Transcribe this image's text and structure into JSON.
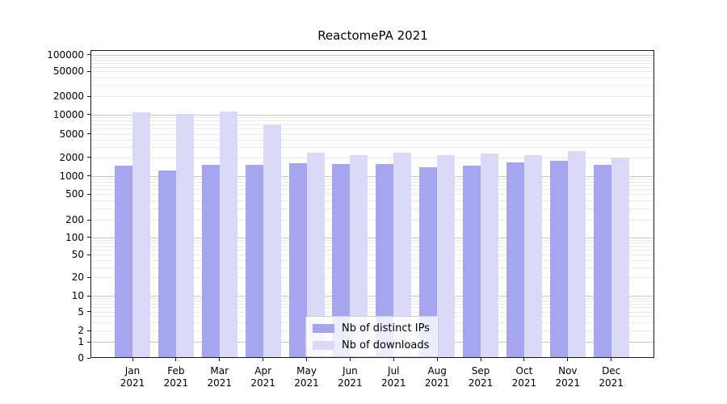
{
  "title": "ReactomePA 2021",
  "colors": {
    "ips_bar": "#a5a5f0",
    "downloads_bar": "#dadaf8",
    "axis": "#1a1a1a",
    "grid_major": "#c6c6c6",
    "grid_minor": "#e9e9e9",
    "legend_background": "rgba(255,255,255,0.8)"
  },
  "legend": {
    "items": [
      {
        "label": "Nb of distinct IPs",
        "series": "ips"
      },
      {
        "label": "Nb of downloads",
        "series": "downloads"
      }
    ]
  },
  "chart_data": {
    "type": "bar",
    "title": "ReactomePA 2021",
    "categories": [
      "Jan 2021",
      "Feb 2021",
      "Mar 2021",
      "Apr 2021",
      "May 2021",
      "Jun 2021",
      "Jul 2021",
      "Aug 2021",
      "Sep 2021",
      "Oct 2021",
      "Nov 2021",
      "Dec 2021"
    ],
    "series": [
      {
        "name": "Nb of distinct IPs",
        "color": "#a5a5f0",
        "values": [
          1400,
          1170,
          1470,
          1460,
          1540,
          1500,
          1500,
          1330,
          1430,
          1580,
          1720,
          1440
        ]
      },
      {
        "name": "Nb of downloads",
        "color": "#dadaf8",
        "values": [
          10400,
          10000,
          10800,
          6700,
          2330,
          2070,
          2290,
          2110,
          2220,
          2110,
          2460,
          1900
        ]
      }
    ],
    "xlabel": "",
    "ylabel": "",
    "yscale": "symlog",
    "ylim": [
      0,
      100000
    ],
    "yticks": [
      0,
      1,
      2,
      5,
      10,
      20,
      50,
      100,
      200,
      500,
      1000,
      2000,
      5000,
      10000,
      20000,
      50000,
      100000
    ],
    "grid": true,
    "legend_position": "lower center"
  }
}
